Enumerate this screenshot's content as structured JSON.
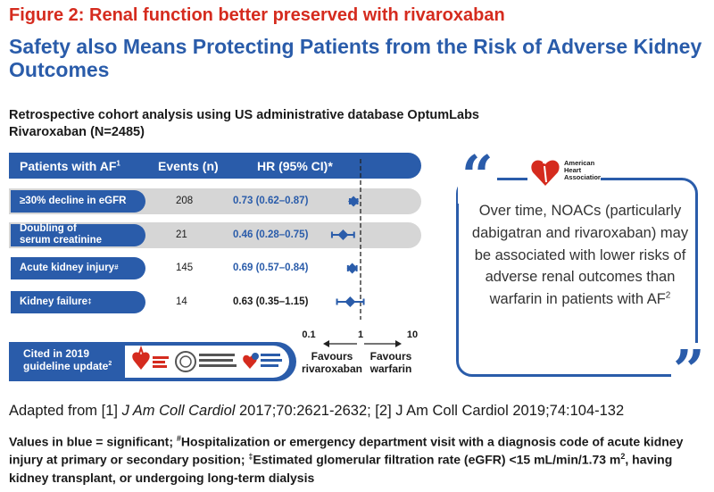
{
  "figure_title": "Figure 2: Renal function better preserved with rivaroxaban",
  "headline": "Safety also Means Protecting Patients from the Risk of Adverse Kidney Outcomes",
  "subtitle_1": "Retrospective cohort analysis using US administrative database OptumLabs",
  "subtitle_2": "Rivaroxaban (N=2485)",
  "table_header": {
    "col1": "Patients with AF",
    "col1_sup": "1",
    "col2": "Events (n)",
    "col3": "HR (95% CI)*"
  },
  "colors": {
    "blue": "#2a5caa",
    "red": "#d52b1e",
    "row_bg": "#d6d6d6",
    "significant": "#2a5caa",
    "nonsignificant": "#1a1a1a"
  },
  "chart_data": {
    "type": "forest",
    "scale": "log",
    "xlim": [
      0.1,
      10
    ],
    "x_ticks": [
      "0.1",
      "1",
      "10"
    ],
    "reference_line": 1,
    "left_label": "Favours\nrivaroxaban",
    "right_label": "Favours\nwarfarin",
    "rows": [
      {
        "outcome": "≥30% decline in eGFR",
        "events": "208",
        "hr_text": "0.73 (0.62–0.87)",
        "hr": 0.73,
        "lo": 0.62,
        "hi": 0.87,
        "significant": true
      },
      {
        "outcome": "Doubling of\nserum creatinine",
        "events": "21",
        "hr_text": "0.46 (0.28–0.75)",
        "hr": 0.46,
        "lo": 0.28,
        "hi": 0.75,
        "significant": true
      },
      {
        "outcome": "Acute kidney injury",
        "outcome_sup": "#",
        "events": "145",
        "hr_text": "0.69 (0.57–0.84)",
        "hr": 0.69,
        "lo": 0.57,
        "hi": 0.84,
        "significant": true
      },
      {
        "outcome": "Kidney failure",
        "outcome_sup": "‡",
        "events": "14",
        "hr_text": "0.63 (0.35–1.15)",
        "hr": 0.63,
        "lo": 0.35,
        "hi": 1.15,
        "significant": false
      }
    ]
  },
  "cited": {
    "text": "Cited in 2019\nguideline update",
    "sup": "2"
  },
  "logos": [
    "american-heart-association",
    "american-college-of-cardiology",
    "heart-rhythm-society"
  ],
  "aha_logo_text": "American Heart Association.",
  "quote": {
    "text": "Over time, NOACs (particularly dabigatran and rivaroxaban) may be associated with lower risks of adverse renal outcomes than warfarin in patients with AF",
    "sup": "2"
  },
  "adapted": {
    "prefix": "Adapted from [1] ",
    "journal1": "J Am Coll Cardiol",
    "ref1": " 2017;70:2621-2632; [2] J Am Coll Cardiol 2019;74:104-132"
  },
  "footnote": {
    "part1": "Values in blue = significant; ",
    "sup1": "#",
    "part2": "Hospitalization or emergency department visit with a diagnosis code of acute kidney injury at primary or secondary position; ",
    "sup2": "‡",
    "part3": "Estimated glomerular filtration rate (eGFR) <15 mL/min/1.73 m",
    "sup3": "2",
    "part4": ", having kidney transplant, or undergoing long-term dialysis"
  }
}
